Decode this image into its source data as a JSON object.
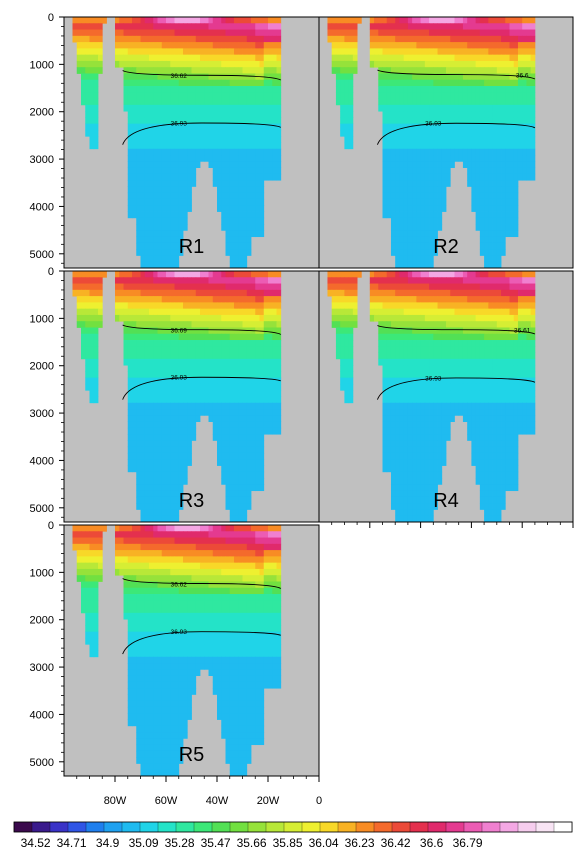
{
  "chart_data": {
    "type": "heatmap",
    "panels": [
      {
        "label": "R1",
        "contours": [
          {
            "value": "36.62",
            "depth": [
              1130,
              1330
            ]
          },
          {
            "value": "36.93",
            "depth": [
              2400,
              2330
            ]
          }
        ]
      },
      {
        "label": "R2",
        "contours": [
          {
            "value": "36.6",
            "depth": [
              1120,
              1310
            ]
          },
          {
            "value": "36.93",
            "depth": [
              2400,
              2340
            ]
          }
        ]
      },
      {
        "label": "R3",
        "contours": [
          {
            "value": "36.69",
            "depth": [
              1140,
              1340
            ]
          },
          {
            "value": "36.93",
            "depth": [
              2420,
              2320
            ]
          }
        ]
      },
      {
        "label": "R4",
        "contours": [
          {
            "value": "36.61",
            "depth": [
              1150,
              1330
            ]
          },
          {
            "value": "36.93",
            "depth": [
              2420,
              2350
            ]
          }
        ]
      },
      {
        "label": "R5",
        "contours": [
          {
            "value": "36.62",
            "depth": [
              1130,
              1340
            ]
          },
          {
            "value": "36.93",
            "depth": [
              2430,
              2330
            ]
          }
        ]
      }
    ],
    "y_ticks": [
      "0",
      "1000",
      "2000",
      "3000",
      "4000",
      "5000"
    ],
    "x_ticks": [
      "80W",
      "60W",
      "40W",
      "20W",
      "0"
    ],
    "ylim": [
      0,
      5300
    ],
    "xlim": [
      -100,
      0
    ],
    "colorbar_labels": [
      "34.52",
      "34.71",
      "34.9",
      "35.09",
      "35.28",
      "35.47",
      "35.66",
      "35.85",
      "36.04",
      "36.23",
      "36.42",
      "36.6",
      "36.79"
    ],
    "colorbar_colors": [
      "#3b0a4d",
      "#3a1a8c",
      "#3a33c8",
      "#2f55e6",
      "#1f7fee",
      "#1fa1f0",
      "#1fbbf0",
      "#20d4e8",
      "#24e3c8",
      "#2fe8a0",
      "#3ce878",
      "#52e055",
      "#72e040",
      "#96e23a",
      "#b8e838",
      "#d6ee34",
      "#eef030",
      "#f8d828",
      "#f8b224",
      "#f88c24",
      "#f46a2c",
      "#ec4a38",
      "#e4304e",
      "#e02a6c",
      "#e43a90",
      "#ec5cb4",
      "#f080d0",
      "#f4a8e4",
      "#f6cdee",
      "#f8e4f4",
      "#ffffff"
    ],
    "background": "#c0c0c0"
  }
}
